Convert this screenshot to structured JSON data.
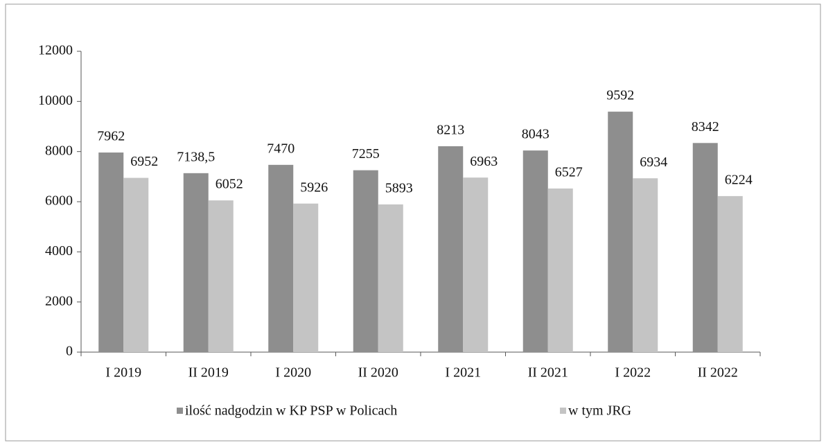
{
  "chart_data": {
    "type": "bar",
    "categories": [
      "I 2019",
      "II 2019",
      "I 2020",
      "II 2020",
      "I 2021",
      "II 2021",
      "I 2022",
      "II 2022"
    ],
    "series": [
      {
        "name": "ilość nadgodzin w KP PSP w Policach",
        "color": "#8e8e8e",
        "values": [
          7962,
          7138.5,
          7470,
          7255,
          8213,
          8043,
          9592,
          8342
        ],
        "value_labels": [
          "7962",
          "7138,5",
          "7470",
          "7255",
          "8213",
          "8043",
          "9592",
          "8342"
        ]
      },
      {
        "name": "w tym JRG",
        "color": "#c4c4c4",
        "values": [
          6952,
          6052,
          5926,
          5893,
          6963,
          6527,
          6934,
          6224
        ]
      }
    ],
    "ylim": [
      0,
      12000
    ],
    "yticks": [
      0,
      2000,
      4000,
      6000,
      8000,
      10000,
      12000
    ]
  }
}
